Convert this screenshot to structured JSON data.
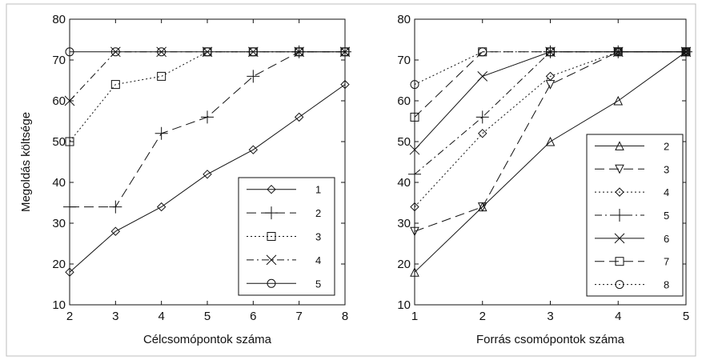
{
  "chart_data": [
    {
      "type": "line",
      "title": "",
      "xlabel": "Célcsomópontok száma",
      "ylabel": "Megoldás költsége",
      "xlim": [
        2,
        8
      ],
      "ylim": [
        10,
        80
      ],
      "xticks": [
        2,
        3,
        4,
        5,
        6,
        7,
        8
      ],
      "yticks": [
        10,
        20,
        30,
        40,
        50,
        60,
        70,
        80
      ],
      "grid": false,
      "legend_position": "bottom-right",
      "x": [
        2,
        3,
        4,
        5,
        6,
        7,
        8
      ],
      "series": [
        {
          "name": "1",
          "style": "solid",
          "marker": "diamond",
          "values": [
            18,
            28,
            34,
            42,
            48,
            56,
            64
          ]
        },
        {
          "name": "2",
          "style": "dashed",
          "marker": "plus",
          "values": [
            34,
            34,
            52,
            56,
            66,
            72,
            72
          ]
        },
        {
          "name": "3",
          "style": "dotted",
          "marker": "square",
          "values": [
            50,
            64,
            66,
            72,
            72,
            72,
            72
          ]
        },
        {
          "name": "4",
          "style": "dashdot",
          "marker": "x",
          "values": [
            60,
            72,
            72,
            72,
            72,
            72,
            72
          ]
        },
        {
          "name": "5",
          "style": "solid",
          "marker": "circle",
          "values": [
            72,
            72,
            72,
            72,
            72,
            72,
            72
          ]
        }
      ]
    },
    {
      "type": "line",
      "title": "",
      "xlabel": "Forrás csomópontok száma",
      "ylabel": "",
      "xlim": [
        1,
        5
      ],
      "ylim": [
        10,
        80
      ],
      "xticks": [
        1,
        2,
        3,
        4,
        5
      ],
      "yticks": [
        10,
        20,
        30,
        40,
        50,
        60,
        70,
        80
      ],
      "grid": false,
      "legend_position": "bottom-right",
      "x": [
        1,
        2,
        3,
        4,
        5
      ],
      "series": [
        {
          "name": "2",
          "style": "solid",
          "marker": "triangle-up",
          "values": [
            18,
            34,
            50,
            60,
            72
          ]
        },
        {
          "name": "3",
          "style": "dashed",
          "marker": "triangle-down",
          "values": [
            28,
            34,
            64,
            72,
            72
          ]
        },
        {
          "name": "4",
          "style": "dotted",
          "marker": "diamond",
          "values": [
            34,
            52,
            66,
            72,
            72
          ]
        },
        {
          "name": "5",
          "style": "dashdot",
          "marker": "plus",
          "values": [
            42,
            56,
            72,
            72,
            72
          ]
        },
        {
          "name": "6",
          "style": "solid",
          "marker": "x",
          "values": [
            48,
            66,
            72,
            72,
            72
          ]
        },
        {
          "name": "7",
          "style": "dashed",
          "marker": "square",
          "values": [
            56,
            72,
            72,
            72,
            72
          ]
        },
        {
          "name": "8",
          "style": "dotted",
          "marker": "circle",
          "values": [
            64,
            72,
            72,
            72,
            72
          ]
        }
      ]
    }
  ]
}
